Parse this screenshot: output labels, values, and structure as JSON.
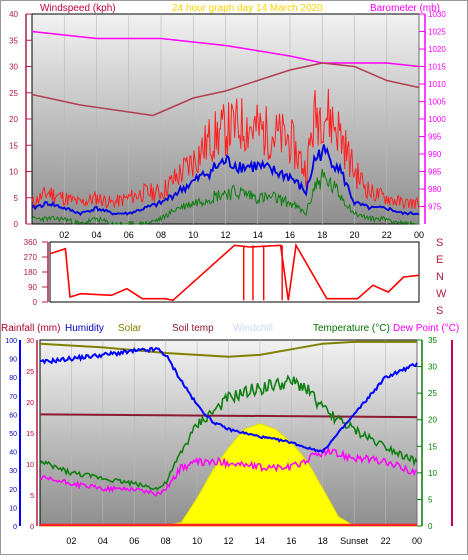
{
  "header": {
    "wind_label": "Windspeed (kph)",
    "subtitle": "24 hour graph day   14 March 2020",
    "baro_label": "Barometer (mb)"
  },
  "lower_header": {
    "rain_label": "Rainfall (mm)",
    "humidity_label": "Humidity",
    "solar_label": "Solar",
    "soiltemp_label": "Soil temp",
    "windchill_label": "Windchill",
    "temp_label": "Temperature (°C)",
    "dew_label": "Dew Point (°C)"
  },
  "colors": {
    "wind_max": "#ff2020",
    "wind_avg": "#0000e0",
    "wind_min": "#108010",
    "barometer": "#ff00ff",
    "baro2": "#b04050",
    "direction": "#ff0000",
    "humidity": "#0000ff",
    "solar_fill": "#ffff00",
    "solar_line": "#808000",
    "soil": "#8b1a30",
    "temperature": "#108010",
    "dewpoint": "#ff00ff",
    "rain": "#ff2020",
    "left_axis": "#b02040",
    "right_axis": "#ff00ff",
    "right_axis2": "#008000"
  },
  "chart_data": [
    {
      "type": "line",
      "title": "24 hour graph day   14 March 2020",
      "ylabel": "Windspeed (kph)",
      "y2label": "Barometer (mb)",
      "xlim": [
        0,
        24
      ],
      "ylim": [
        0,
        40
      ],
      "y2lim": [
        970,
        1030
      ],
      "x_ticks": [
        "02",
        "04",
        "06",
        "08",
        "10",
        "12",
        "14",
        "16",
        "18",
        "20",
        "22",
        "00"
      ],
      "y_ticks": [
        "0",
        "5",
        "10",
        "15",
        "20",
        "25",
        "30",
        "35",
        "40"
      ],
      "y2_ticks": [
        "975",
        "980",
        "985",
        "990",
        "995",
        "1000",
        "1005",
        "1010",
        "1015",
        "1020",
        "1025",
        "1030"
      ],
      "series": [
        {
          "name": "Barometer",
          "x": [
            0,
            4,
            8,
            12,
            16,
            18,
            20,
            22,
            24
          ],
          "y": [
            1025,
            1023,
            1023,
            1021,
            1018,
            1016,
            1016,
            1016,
            1015
          ]
        },
        {
          "name": "Barometer trend",
          "x": [
            0,
            3,
            6,
            7.5,
            8,
            10,
            12,
            16,
            18,
            20,
            22,
            24
          ],
          "y": [
            1007,
            1004,
            1002,
            1001,
            1002,
            1006,
            1008,
            1014,
            1016,
            1015,
            1011,
            1009
          ]
        },
        {
          "name": "Max gust",
          "x": [
            0,
            1,
            2,
            3,
            4,
            5,
            6,
            7,
            8,
            9,
            10,
            11,
            12,
            13,
            14,
            15,
            16,
            17,
            17.5,
            18,
            19,
            20,
            21,
            22,
            23,
            24
          ],
          "y": [
            4,
            6,
            5,
            4,
            5,
            4,
            5,
            6,
            6,
            9,
            12,
            16,
            18,
            19,
            18,
            17,
            16,
            10,
            20,
            22,
            18,
            10,
            6,
            5,
            4,
            4
          ]
        },
        {
          "name": "Average",
          "x": [
            0,
            1,
            2,
            3,
            4,
            5,
            6,
            7,
            8,
            9,
            10,
            11,
            12,
            13,
            14,
            15,
            16,
            17,
            17.5,
            18,
            19,
            20,
            21,
            22,
            23,
            24
          ],
          "y": [
            3,
            4,
            3,
            2,
            3,
            2,
            2,
            3,
            4,
            6,
            8,
            10,
            12,
            11,
            11,
            10,
            9,
            6,
            12,
            14,
            11,
            4,
            3,
            3,
            2,
            2
          ]
        },
        {
          "name": "Min",
          "x": [
            0,
            1,
            2,
            3,
            4,
            5,
            6,
            7,
            8,
            9,
            10,
            11,
            12,
            13,
            14,
            15,
            16,
            17,
            17.5,
            18,
            19,
            20,
            21,
            22,
            23,
            24
          ],
          "y": [
            1,
            1,
            1,
            0,
            1,
            0,
            0,
            0,
            1,
            3,
            4,
            5,
            6,
            6,
            5,
            5,
            4,
            2,
            7,
            9,
            6,
            2,
            1,
            1,
            0,
            0
          ]
        }
      ]
    },
    {
      "type": "line",
      "title": "",
      "xlim": [
        0,
        24
      ],
      "ylim": [
        0,
        360
      ],
      "y_ticks": [
        "0",
        "90",
        "180",
        "270",
        "360"
      ],
      "y2_ticks": [
        "S",
        "E",
        "N",
        "W",
        "S"
      ],
      "series": [
        {
          "name": "Direction",
          "x": [
            0,
            1,
            1.3,
            2,
            4,
            5,
            6,
            7.5,
            8,
            12,
            13,
            15,
            15.5,
            16,
            18,
            20,
            21,
            22,
            23,
            24
          ],
          "y": [
            290,
            320,
            30,
            50,
            40,
            80,
            20,
            20,
            10,
            340,
            330,
            340,
            10,
            340,
            20,
            20,
            100,
            60,
            150,
            160
          ]
        }
      ]
    },
    {
      "type": "area",
      "title": "",
      "xlim": [
        0,
        24
      ],
      "ylim": [
        0,
        100
      ],
      "y2lim": [
        0,
        35
      ],
      "y_ticks": [
        "0",
        "10",
        "20",
        "30",
        "40",
        "50",
        "60",
        "70",
        "80",
        "90",
        "100"
      ],
      "yrain_ticks": [
        "0",
        "5",
        "10",
        "15",
        "20",
        "25",
        "30"
      ],
      "y2_ticks": [
        "0",
        "5",
        "10",
        "15",
        "20",
        "25",
        "30",
        "35"
      ],
      "x_ticks": [
        "02",
        "04",
        "06",
        "08",
        "10",
        "12",
        "14",
        "16",
        "18",
        "Sunset",
        "22",
        "00"
      ],
      "series": [
        {
          "name": "Humidity",
          "x": [
            0,
            2,
            4,
            6,
            7.5,
            8,
            9,
            10,
            11,
            12,
            14,
            16,
            17,
            18,
            20,
            22,
            24
          ],
          "y": [
            88,
            90,
            92,
            94,
            95,
            92,
            78,
            65,
            56,
            52,
            48,
            45,
            42,
            40,
            60,
            80,
            87
          ]
        },
        {
          "name": "Solar",
          "x": [
            0,
            8,
            9,
            10,
            11,
            12,
            13,
            14,
            15,
            16,
            17,
            18,
            19,
            20,
            24
          ],
          "y": [
            0,
            0,
            2,
            15,
            30,
            42,
            52,
            55,
            52,
            45,
            35,
            20,
            5,
            0,
            0
          ]
        },
        {
          "name": "Solar max",
          "x": [
            0,
            4,
            8,
            12,
            14,
            16,
            18,
            20,
            22,
            24
          ],
          "y": [
            98,
            96,
            93,
            91,
            92,
            95,
            98,
            99,
            99,
            99
          ]
        },
        {
          "name": "Soil temp",
          "x": [
            0,
            24
          ],
          "y": [
            21,
            20.5
          ]
        },
        {
          "name": "Temperature",
          "x": [
            0,
            2,
            4,
            6,
            7.5,
            8,
            9,
            10,
            12,
            14,
            16,
            17,
            18,
            20,
            22,
            24
          ],
          "y": [
            12,
            10,
            9,
            8,
            7,
            8,
            14,
            19,
            24,
            26,
            27,
            26,
            22,
            18,
            15,
            12
          ]
        },
        {
          "name": "Dew Point",
          "x": [
            0,
            2,
            4,
            6,
            7.5,
            8,
            9,
            10,
            12,
            14,
            16,
            18,
            20,
            22,
            24
          ],
          "y": [
            9,
            8,
            7,
            7,
            6,
            7,
            11,
            12,
            12,
            11,
            11,
            14,
            13,
            12,
            10
          ]
        }
      ]
    }
  ]
}
